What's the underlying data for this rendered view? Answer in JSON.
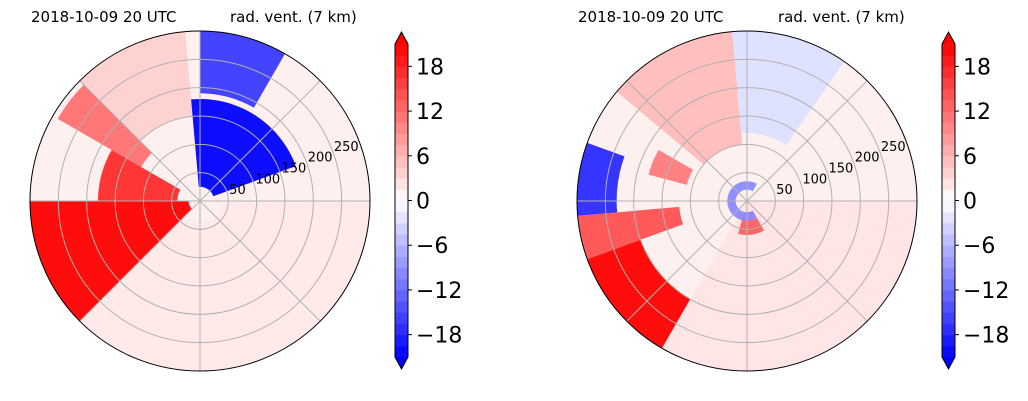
{
  "chart_data": [
    {
      "type": "heatmap",
      "projection": "polar",
      "title_left": "2018-10-09 20 UTC",
      "title_right": "rad. vent. (7 km)",
      "title_left_color": "#0000ff",
      "radial_ticks": [
        "50",
        "100",
        "150",
        "200",
        "250"
      ],
      "rmax": 300,
      "colorbar": {
        "ticks": [
          "18",
          "12",
          "6",
          "0",
          "−6",
          "−12",
          "−18"
        ],
        "tick_values": [
          18,
          12,
          6,
          0,
          -6,
          -12,
          -18
        ],
        "range": [
          -21,
          21
        ],
        "colormap": "bwr",
        "extend": "both"
      },
      "blobs": [
        {
          "color": "#ff0000",
          "points": [
            [
              180,
              20
            ],
            [
              180,
              300
            ],
            [
              225,
              300
            ],
            [
              225,
              20
            ]
          ]
        },
        {
          "color": "#ff2b2b",
          "points": [
            [
              150,
              40
            ],
            [
              150,
              180
            ],
            [
              180,
              180
            ],
            [
              180,
              40
            ]
          ]
        },
        {
          "color": "#ff7070",
          "points": [
            [
              135,
              120
            ],
            [
              135,
              290
            ],
            [
              150,
              290
            ],
            [
              150,
              120
            ]
          ]
        },
        {
          "color": "#ffd0d0",
          "points": [
            [
              95,
              150
            ],
            [
              95,
              300
            ],
            [
              135,
              300
            ],
            [
              135,
              150
            ]
          ]
        },
        {
          "color": "#0000ff",
          "points": [
            [
              20,
              25
            ],
            [
              20,
              180
            ],
            [
              95,
              180
            ],
            [
              95,
              25
            ]
          ]
        },
        {
          "color": "#3a3aff",
          "points": [
            [
              60,
              190
            ],
            [
              60,
              300
            ],
            [
              90,
              300
            ],
            [
              90,
              190
            ]
          ]
        },
        {
          "color": "#ffe8e8",
          "points": [
            [
              225,
              40
            ],
            [
              225,
              300
            ],
            [
              360,
              300
            ],
            [
              360,
              40
            ]
          ]
        }
      ]
    },
    {
      "type": "heatmap",
      "projection": "polar",
      "title_left": "2018-10-09 20 UTC",
      "title_right": "rad. vent. (7 km)",
      "title_left_color": "#0000ff",
      "radial_ticks": [
        "50",
        "100",
        "150",
        "200",
        "250"
      ],
      "rmax": 300,
      "colorbar": {
        "ticks": [
          "18",
          "12",
          "6",
          "0",
          "−6",
          "−12",
          "−18"
        ],
        "tick_values": [
          18,
          12,
          6,
          0,
          -6,
          -12,
          -18
        ],
        "range": [
          -21,
          21
        ],
        "colormap": "bwr",
        "extend": "both"
      },
      "blobs": [
        {
          "color": "#ff0000",
          "points": [
            [
              200,
              200
            ],
            [
              200,
              300
            ],
            [
              240,
              300
            ],
            [
              240,
              200
            ]
          ]
        },
        {
          "color": "#ff5050",
          "points": [
            [
              185,
              120
            ],
            [
              185,
              300
            ],
            [
              200,
              300
            ],
            [
              200,
              120
            ]
          ]
        },
        {
          "color": "#2a2aff",
          "points": [
            [
              160,
              230
            ],
            [
              160,
              300
            ],
            [
              185,
              300
            ],
            [
              185,
              230
            ]
          ]
        },
        {
          "color": "#ff7a7a",
          "points": [
            [
              150,
              110
            ],
            [
              150,
              180
            ],
            [
              165,
              180
            ],
            [
              165,
              110
            ]
          ]
        },
        {
          "color": "#ffbcbc",
          "points": [
            [
              95,
              100
            ],
            [
              95,
              300
            ],
            [
              140,
              300
            ],
            [
              140,
              100
            ]
          ]
        },
        {
          "color": "#dde0ff",
          "points": [
            [
              55,
              120
            ],
            [
              55,
              300
            ],
            [
              95,
              300
            ],
            [
              95,
              120
            ]
          ]
        },
        {
          "color": "#ffe4e4",
          "points": [
            [
              240,
              0
            ],
            [
              240,
              300
            ],
            [
              360,
              300
            ],
            [
              360,
              0
            ]
          ]
        },
        {
          "color": "#ff6060",
          "points": [
            [
              255,
              20
            ],
            [
              255,
              60
            ],
            [
              300,
              60
            ],
            [
              300,
              20
            ]
          ]
        },
        {
          "color": "#8a8aff",
          "points": [
            [
              60,
              20
            ],
            [
              60,
              35
            ],
            [
              300,
              35
            ],
            [
              300,
              20
            ]
          ]
        }
      ]
    }
  ]
}
